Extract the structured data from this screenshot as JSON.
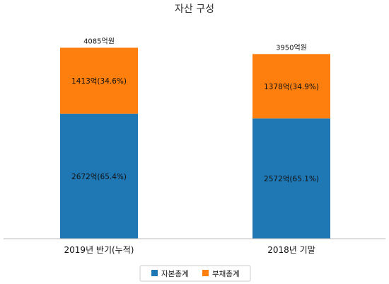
{
  "chart_data": {
    "type": "bar",
    "stacked": true,
    "title": "자산 구성",
    "categories": [
      "2019년 반기(누적)",
      "2018년 기말"
    ],
    "totals": [
      4085,
      3950
    ],
    "total_labels": [
      "4085억원",
      "3950억원"
    ],
    "series": [
      {
        "name": "자본총계",
        "color": "#1f77b4",
        "values": [
          2672,
          2572
        ],
        "labels": [
          "2672억(65.4%)",
          "2572억(65.1%)"
        ]
      },
      {
        "name": "부채총계",
        "color": "#ff7f0e",
        "values": [
          1413,
          1378
        ],
        "labels": [
          "1413억(34.6%)",
          "1378억(34.9%)"
        ]
      }
    ],
    "ylim": [
      0,
      4500
    ],
    "grid": false,
    "legend": "bottom-center"
  }
}
